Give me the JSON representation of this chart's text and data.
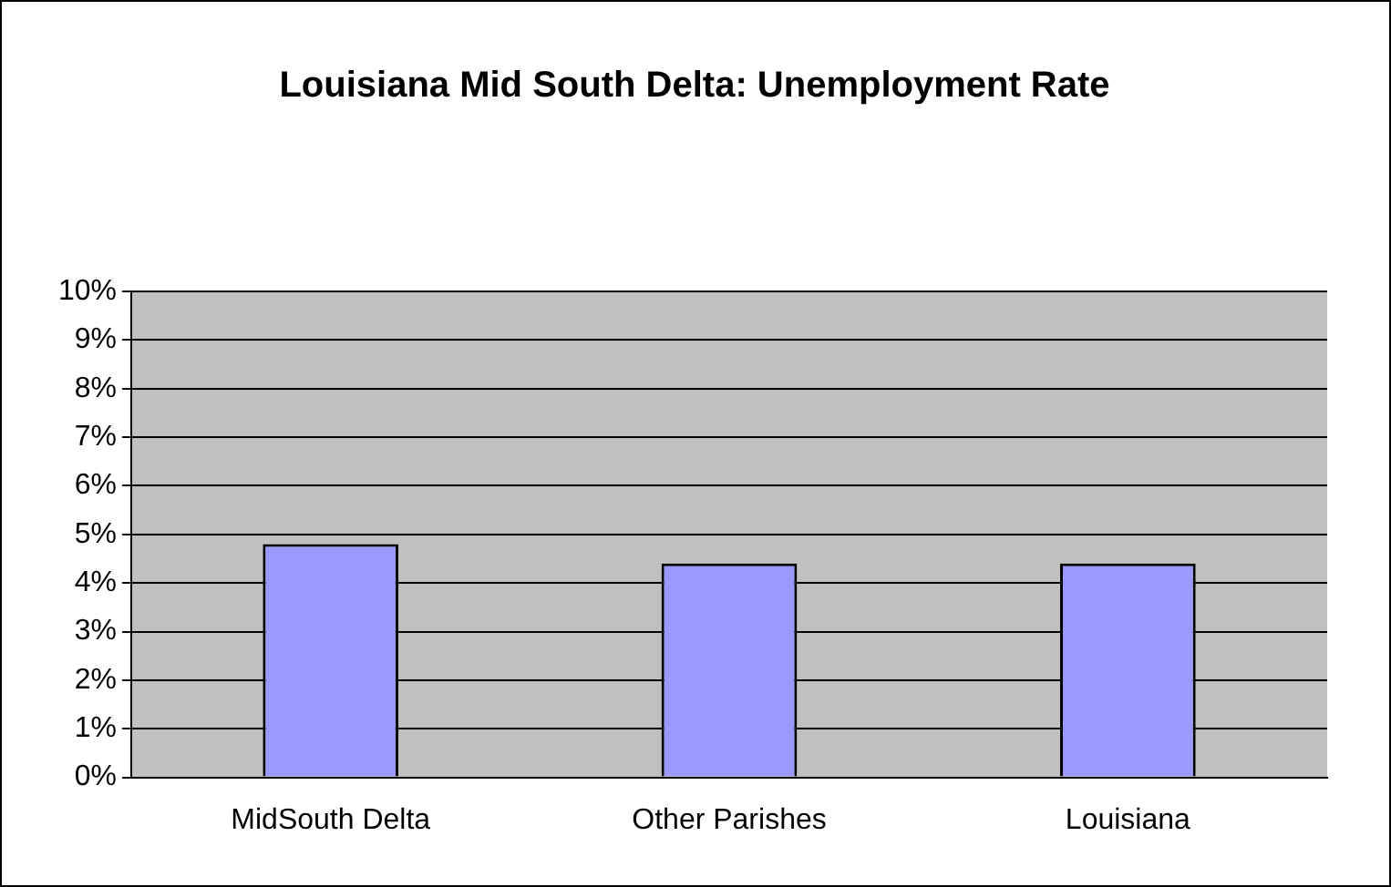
{
  "chart_data": {
    "type": "bar",
    "title": "Louisiana Mid South Delta: Unemployment Rate",
    "categories": [
      "MidSouth Delta",
      "Other Parishes",
      "Louisiana"
    ],
    "values": [
      4.8,
      4.4,
      4.4
    ],
    "color": "#9999ff",
    "ylim": [
      0,
      10
    ],
    "yticks": [
      {
        "value": 0,
        "label": "0%"
      },
      {
        "value": 1,
        "label": "1%"
      },
      {
        "value": 2,
        "label": "2%"
      },
      {
        "value": 3,
        "label": "3%"
      },
      {
        "value": 4,
        "label": "4%"
      },
      {
        "value": 5,
        "label": "5%"
      },
      {
        "value": 6,
        "label": "6%"
      },
      {
        "value": 7,
        "label": "7%"
      },
      {
        "value": 8,
        "label": "8%"
      },
      {
        "value": 9,
        "label": "9%"
      },
      {
        "value": 10,
        "label": "10%"
      }
    ],
    "grid": "y"
  }
}
